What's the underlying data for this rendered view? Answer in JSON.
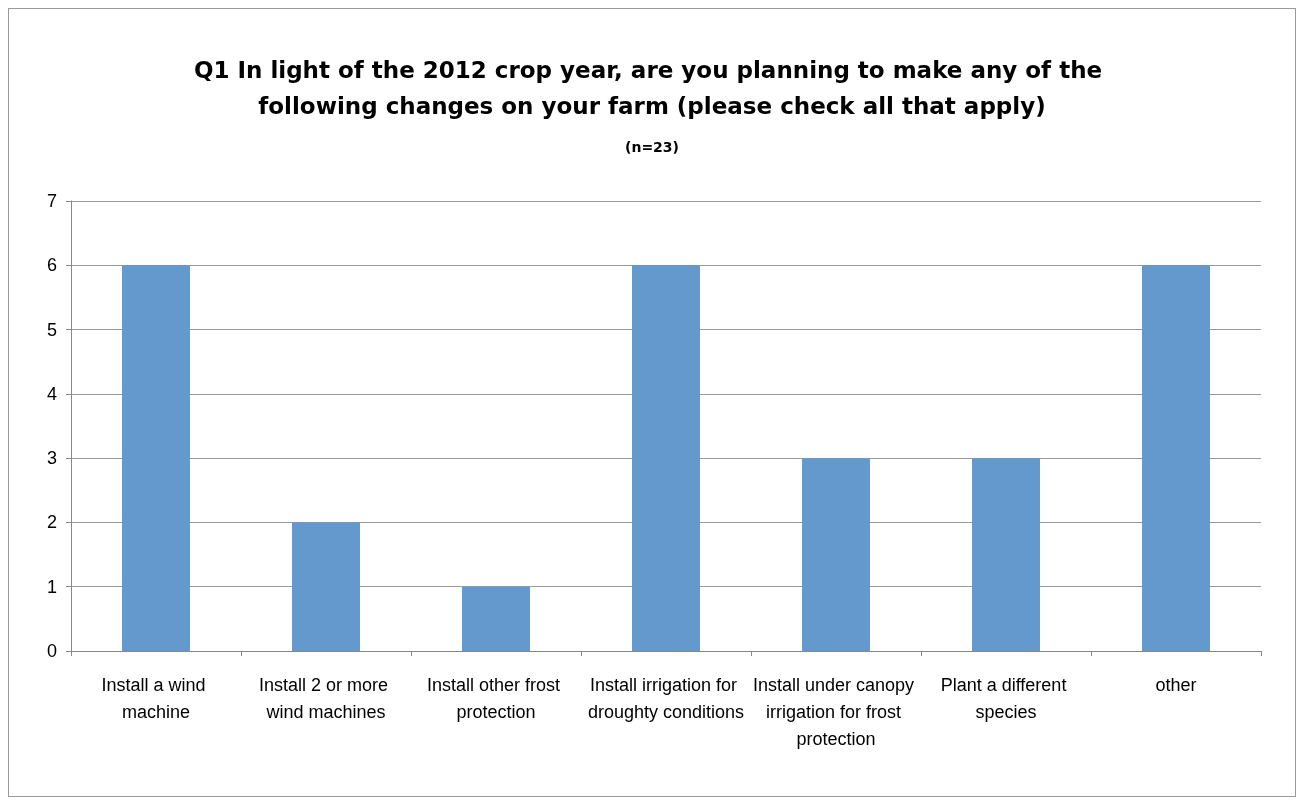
{
  "chart_data": {
    "type": "bar",
    "title": "Q1 In light of the 2012 crop year, are you planning to make any of the following changes on your farm (please check all that apply)",
    "subtitle": "(n=23)",
    "categories": [
      "Install a wind machine",
      "Install 2 or more wind machines",
      "Install other frost protection",
      "Install irrigation for droughty conditions",
      "Install under canopy irrigation for frost protection",
      "Plant a different species",
      "other"
    ],
    "values": [
      6,
      2,
      1,
      6,
      3,
      3,
      6
    ],
    "color": "#6399cc",
    "ylim": [
      0,
      7
    ],
    "yticks": [
      0,
      1,
      2,
      3,
      4,
      5,
      6,
      7
    ],
    "grid": "y"
  }
}
